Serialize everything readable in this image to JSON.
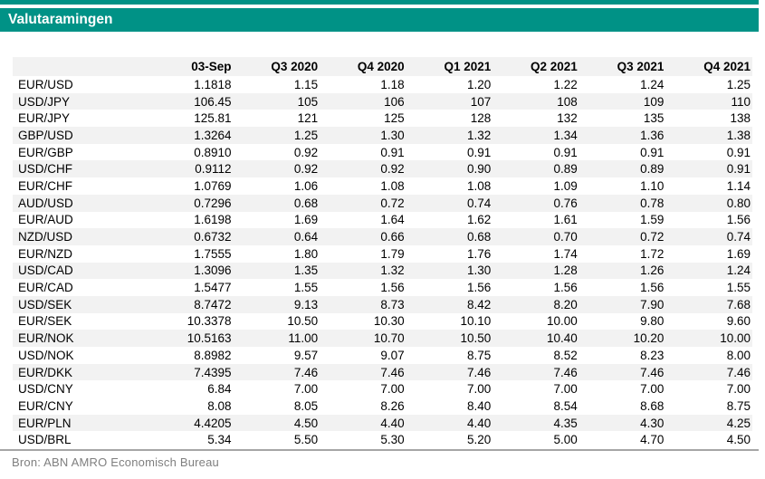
{
  "title_bar": {
    "title": "Valutaramingen"
  },
  "footer": {
    "source": "Bron: ABN AMRO Economisch Bureau"
  },
  "style": {
    "accent_teal": "#009286",
    "title_text": "#FFFFFF",
    "stripe_gray": "#F2F2F2",
    "divider_gray": "#A6A6A6",
    "source_text_gray": "#7F7F7F",
    "shaded_rows": [
      2,
      4,
      6,
      8,
      10,
      12,
      14,
      16,
      18,
      21
    ]
  },
  "chart_data": {
    "type": "table",
    "title": "Valutaramingen",
    "source": "Bron: ABN AMRO Economisch Bureau",
    "columns": [
      "",
      "03-Sep",
      "Q3 2020",
      "Q4 2020",
      "Q1 2021",
      "Q2 2021",
      "Q3 2021",
      "Q4 2021"
    ],
    "rows": [
      [
        "EUR/USD",
        "1.1818",
        "1.15",
        "1.18",
        "1.20",
        "1.22",
        "1.24",
        "1.25"
      ],
      [
        "USD/JPY",
        "106.45",
        "105",
        "106",
        "107",
        "108",
        "109",
        "110"
      ],
      [
        "EUR/JPY",
        "125.81",
        "121",
        "125",
        "128",
        "132",
        "135",
        "138"
      ],
      [
        "GBP/USD",
        "1.3264",
        "1.25",
        "1.30",
        "1.32",
        "1.34",
        "1.36",
        "1.38"
      ],
      [
        "EUR/GBP",
        "0.8910",
        "0.92",
        "0.91",
        "0.91",
        "0.91",
        "0.91",
        "0.91"
      ],
      [
        "USD/CHF",
        "0.9112",
        "0.92",
        "0.92",
        "0.90",
        "0.89",
        "0.89",
        "0.91"
      ],
      [
        "EUR/CHF",
        "1.0769",
        "1.06",
        "1.08",
        "1.08",
        "1.09",
        "1.10",
        "1.14"
      ],
      [
        "AUD/USD",
        "0.7296",
        "0.68",
        "0.72",
        "0.74",
        "0.76",
        "0.78",
        "0.80"
      ],
      [
        "EUR/AUD",
        "1.6198",
        "1.69",
        "1.64",
        "1.62",
        "1.61",
        "1.59",
        "1.56"
      ],
      [
        "NZD/USD",
        "0.6732",
        "0.64",
        "0.66",
        "0.68",
        "0.70",
        "0.72",
        "0.74"
      ],
      [
        "EUR/NZD",
        "1.7555",
        "1.80",
        "1.79",
        "1.76",
        "1.74",
        "1.72",
        "1.69"
      ],
      [
        "USD/CAD",
        "1.3096",
        "1.35",
        "1.32",
        "1.30",
        "1.28",
        "1.26",
        "1.24"
      ],
      [
        "EUR/CAD",
        "1.5477",
        "1.55",
        "1.56",
        "1.56",
        "1.56",
        "1.56",
        "1.55"
      ],
      [
        "USD/SEK",
        "8.7472",
        "9.13",
        "8.73",
        "8.42",
        "8.20",
        "7.90",
        "7.68"
      ],
      [
        "EUR/SEK",
        "10.3378",
        "10.50",
        "10.30",
        "10.10",
        "10.00",
        "9.80",
        "9.60"
      ],
      [
        "EUR/NOK",
        "10.5163",
        "11.00",
        "10.70",
        "10.50",
        "10.40",
        "10.20",
        "10.00"
      ],
      [
        "USD/NOK",
        "8.8982",
        "9.57",
        "9.07",
        "8.75",
        "8.52",
        "8.23",
        "8.00"
      ],
      [
        "EUR/DKK",
        "7.4395",
        "7.46",
        "7.46",
        "7.46",
        "7.46",
        "7.46",
        "7.46"
      ],
      [
        "USD/CNY",
        "6.84",
        "7.00",
        "7.00",
        "7.00",
        "7.00",
        "7.00",
        "7.00"
      ],
      [
        "EUR/CNY",
        "8.08",
        "8.05",
        "8.26",
        "8.40",
        "8.54",
        "8.68",
        "8.75"
      ],
      [
        "EUR/PLN",
        "4.4205",
        "4.50",
        "4.40",
        "4.40",
        "4.35",
        "4.30",
        "4.25"
      ],
      [
        "USD/BRL",
        "5.34",
        "5.50",
        "5.30",
        "5.20",
        "5.00",
        "4.70",
        "4.50"
      ]
    ]
  }
}
